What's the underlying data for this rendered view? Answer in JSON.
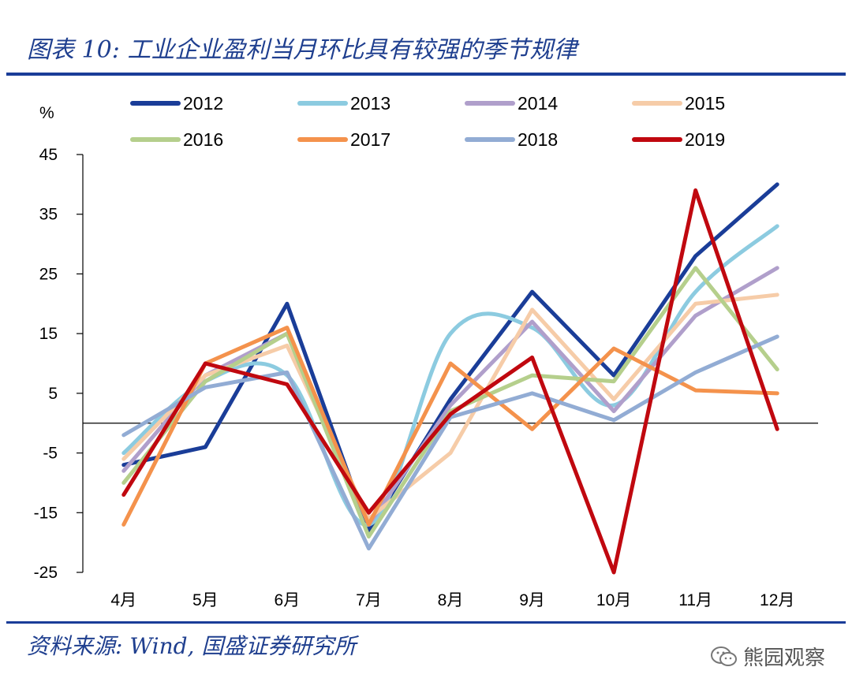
{
  "header": {
    "title": "图表 10:  工业企业盈利当月环比具有较强的季节规律"
  },
  "footer": {
    "source": "资料来源:  Wind,  国盛证券研究所",
    "watermark": "熊园观察"
  },
  "icons": {
    "watermark": "wechat-icon"
  },
  "colors": {
    "title": "#1f3f8f",
    "rule": "#1a3d98"
  },
  "chart_data": {
    "type": "line",
    "title": "工业企业盈利当月环比具有较强的季节规律",
    "ylabel": "%",
    "xlabel": "",
    "ylim": [
      -25,
      45
    ],
    "yticks": [
      45,
      35,
      25,
      15,
      5,
      -5,
      -15,
      -25
    ],
    "categories": [
      "4月",
      "5月",
      "6月",
      "7月",
      "8月",
      "9月",
      "10月",
      "11月",
      "12月"
    ],
    "series": [
      {
        "name": "2012",
        "color": "#1a3d98",
        "width": 5,
        "values": [
          -7,
          -4,
          20,
          -18,
          4,
          22,
          8,
          28,
          40
        ]
      },
      {
        "name": "2013",
        "color": "#8ccbe0",
        "width": 5,
        "values": [
          -5,
          7,
          8,
          -17,
          15,
          16,
          3,
          22,
          33
        ],
        "smooth": true
      },
      {
        "name": "2014",
        "color": "#b09fcb",
        "width": 5,
        "values": [
          -8,
          8,
          15,
          -17,
          3,
          17,
          2,
          18,
          26
        ]
      },
      {
        "name": "2015",
        "color": "#f6cca8",
        "width": 5,
        "values": [
          -6,
          8,
          13,
          -16,
          -5,
          19,
          4,
          20,
          21.5
        ]
      },
      {
        "name": "2016",
        "color": "#b5cf8c",
        "width": 5,
        "values": [
          -10,
          7,
          15,
          -19,
          2,
          8,
          7,
          26,
          9
        ]
      },
      {
        "name": "2017",
        "color": "#f4924c",
        "width": 5,
        "values": [
          -17,
          10,
          16,
          -17,
          10,
          -1,
          12.5,
          5.5,
          5
        ]
      },
      {
        "name": "2018",
        "color": "#92acd4",
        "width": 5,
        "values": [
          -2,
          6,
          8.5,
          -21,
          1,
          5,
          0.5,
          8.5,
          14.5
        ]
      },
      {
        "name": "2019",
        "color": "#c0080f",
        "width": 5,
        "values": [
          -12,
          10,
          6.5,
          -15,
          1.5,
          11,
          -25,
          39,
          -1
        ]
      }
    ],
    "legend_position": "top"
  }
}
